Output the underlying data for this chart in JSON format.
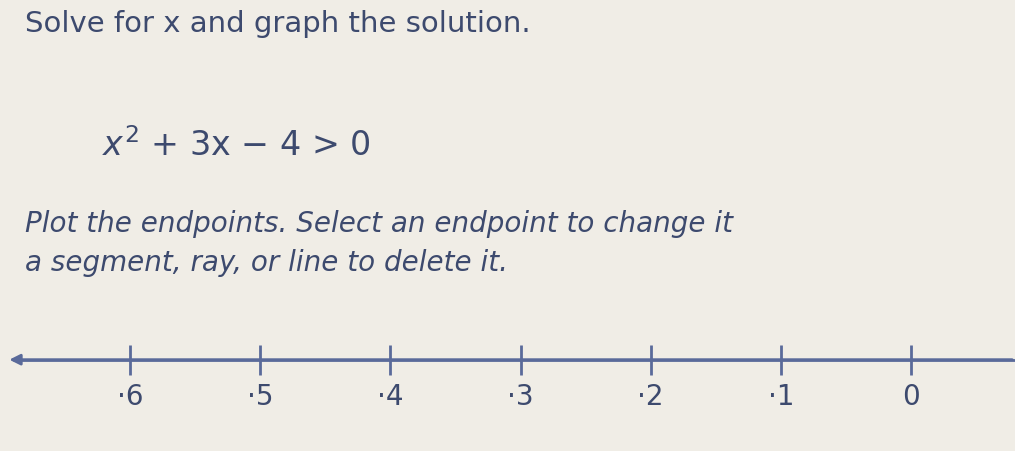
{
  "title": "Solve for x and graph the solution.",
  "equation_parts": [
    "x",
    "2",
    " + 3x − 4 > 0"
  ],
  "instruction": "Plot the endpoints. Select an endpoint to change it\na segment, ray, or line to delete it.",
  "background_color": "#f0ede6",
  "text_color": "#3d4a6e",
  "number_line_color": "#5a6a9a",
  "tick_labels": [
    "·6",
    "·5",
    "·4",
    "·3",
    "·2",
    "·1",
    "0"
  ],
  "tick_values": [
    -6,
    -5,
    -4,
    -3,
    -2,
    -1,
    0
  ],
  "x_min": -7.0,
  "x_max": 0.8,
  "title_fontsize": 21,
  "equation_fontsize": 24,
  "instruction_fontsize": 20,
  "tick_fontsize": 20
}
